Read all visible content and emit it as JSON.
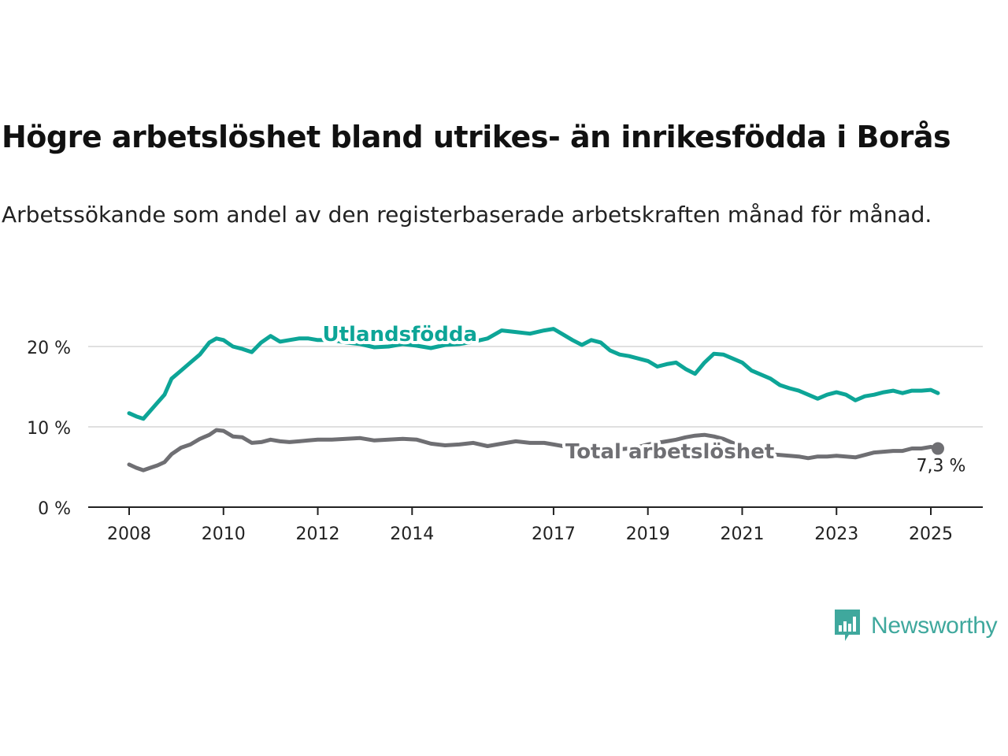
{
  "title": "Högre arbetslöshet bland utrikes- än inrikesfödda i Borås",
  "subtitle": "Arbetssökande som andel av den registerbaserade arbetskraften månad för månad.",
  "brand": {
    "name": "Newsworthy",
    "icon": "bar-chart-speech-bubble-icon",
    "color": "#3fa89d"
  },
  "chart_data": {
    "type": "line",
    "x_unit": "year",
    "xlim": [
      2008,
      2025.3
    ],
    "ylim": [
      0,
      20
    ],
    "y_ticks": [
      0,
      10,
      20
    ],
    "y_tick_labels": [
      "0 %",
      "10 %",
      "20 %"
    ],
    "x_ticks": [
      2008,
      2010,
      2012,
      2014,
      2017,
      2019,
      2021,
      2023,
      2025
    ],
    "x_tick_labels": [
      "2008",
      "2010",
      "2012",
      "2014",
      "2017",
      "2019",
      "2021",
      "2023",
      "2025"
    ],
    "grid": true,
    "legend": "inline labels",
    "series": [
      {
        "name": "Utlandsfödda",
        "color": "#0da597",
        "x": [
          2008.0,
          2008.15,
          2008.3,
          2008.45,
          2008.6,
          2008.75,
          2008.9,
          2009.1,
          2009.3,
          2009.5,
          2009.7,
          2009.85,
          2010.0,
          2010.2,
          2010.4,
          2010.6,
          2010.8,
          2011.0,
          2011.2,
          2011.4,
          2011.6,
          2011.8,
          2012.0,
          2012.3,
          2012.6,
          2012.9,
          2013.2,
          2013.5,
          2013.8,
          2014.1,
          2014.4,
          2014.7,
          2015.0,
          2015.3,
          2015.6,
          2015.9,
          2016.2,
          2016.5,
          2016.8,
          2017.0,
          2017.2,
          2017.4,
          2017.6,
          2017.8,
          2018.0,
          2018.2,
          2018.4,
          2018.6,
          2018.8,
          2019.0,
          2019.2,
          2019.4,
          2019.6,
          2019.8,
          2020.0,
          2020.2,
          2020.4,
          2020.6,
          2020.8,
          2021.0,
          2021.2,
          2021.4,
          2021.6,
          2021.8,
          2022.0,
          2022.2,
          2022.4,
          2022.6,
          2022.8,
          2023.0,
          2023.2,
          2023.4,
          2023.6,
          2023.8,
          2024.0,
          2024.2,
          2024.4,
          2024.6,
          2024.8,
          2025.0,
          2025.15
        ],
        "values": [
          11.7,
          11.3,
          11.0,
          12.0,
          13.0,
          14.0,
          16.0,
          17.0,
          18.0,
          19.0,
          20.5,
          21.0,
          20.8,
          20.0,
          19.7,
          19.3,
          20.5,
          21.3,
          20.6,
          20.8,
          21.0,
          21.0,
          20.8,
          20.8,
          20.5,
          20.3,
          19.9,
          20.0,
          20.3,
          20.1,
          19.8,
          20.2,
          20.3,
          20.6,
          21.0,
          22.0,
          21.8,
          21.6,
          22.0,
          22.2,
          21.5,
          20.8,
          20.2,
          20.8,
          20.5,
          19.5,
          19.0,
          18.8,
          18.5,
          18.2,
          17.5,
          17.8,
          18.0,
          17.2,
          16.6,
          18.0,
          19.1,
          19.0,
          18.5,
          18.0,
          17.0,
          16.5,
          16.0,
          15.2,
          14.8,
          14.5,
          14.0,
          13.5,
          14.0,
          14.3,
          14.0,
          13.3,
          13.8,
          14.0,
          14.3,
          14.5,
          14.2,
          14.5,
          14.5,
          14.6,
          14.2
        ]
      },
      {
        "name": "Total arbetslöshet",
        "color": "#6f6f73",
        "x": [
          2008.0,
          2008.15,
          2008.3,
          2008.45,
          2008.6,
          2008.75,
          2008.9,
          2009.1,
          2009.3,
          2009.5,
          2009.7,
          2009.85,
          2010.0,
          2010.2,
          2010.4,
          2010.6,
          2010.8,
          2011.0,
          2011.2,
          2011.4,
          2011.6,
          2011.8,
          2012.0,
          2012.3,
          2012.6,
          2012.9,
          2013.2,
          2013.5,
          2013.8,
          2014.1,
          2014.4,
          2014.7,
          2015.0,
          2015.3,
          2015.6,
          2015.9,
          2016.2,
          2016.5,
          2016.8,
          2017.0,
          2017.2,
          2017.4,
          2017.6,
          2017.8,
          2018.0,
          2018.2,
          2018.4,
          2018.6,
          2018.8,
          2019.0,
          2019.2,
          2019.4,
          2019.6,
          2019.8,
          2020.0,
          2020.2,
          2020.4,
          2020.6,
          2020.8,
          2021.0,
          2021.2,
          2021.4,
          2021.6,
          2021.8,
          2022.0,
          2022.2,
          2022.4,
          2022.6,
          2022.8,
          2023.0,
          2023.2,
          2023.4,
          2023.6,
          2023.8,
          2024.0,
          2024.2,
          2024.4,
          2024.6,
          2024.8,
          2025.0,
          2025.15
        ],
        "values": [
          5.3,
          4.9,
          4.6,
          4.9,
          5.2,
          5.6,
          6.6,
          7.4,
          7.8,
          8.5,
          9.0,
          9.6,
          9.5,
          8.8,
          8.7,
          8.0,
          8.1,
          8.4,
          8.2,
          8.1,
          8.2,
          8.3,
          8.4,
          8.4,
          8.5,
          8.6,
          8.3,
          8.4,
          8.5,
          8.4,
          7.9,
          7.7,
          7.8,
          8.0,
          7.6,
          7.9,
          8.2,
          8.0,
          8.0,
          7.8,
          7.6,
          7.4,
          7.2,
          7.1,
          7.0,
          7.1,
          7.2,
          7.3,
          7.5,
          7.8,
          8.0,
          8.2,
          8.4,
          8.7,
          8.9,
          9.0,
          8.8,
          8.5,
          8.0,
          7.5,
          7.0,
          6.8,
          6.6,
          6.5,
          6.4,
          6.3,
          6.1,
          6.3,
          6.3,
          6.4,
          6.3,
          6.2,
          6.5,
          6.8,
          6.9,
          7.0,
          7.0,
          7.3,
          7.3,
          7.5,
          7.3
        ]
      }
    ],
    "annotations": [
      {
        "series": "Utlandsfödda",
        "text": "Utlandsfödda"
      },
      {
        "series": "Total arbetslöshet",
        "text": "Total arbetslöshet"
      },
      {
        "series": "Total arbetslöshet",
        "text": "7,3 %",
        "at": "last"
      }
    ]
  }
}
